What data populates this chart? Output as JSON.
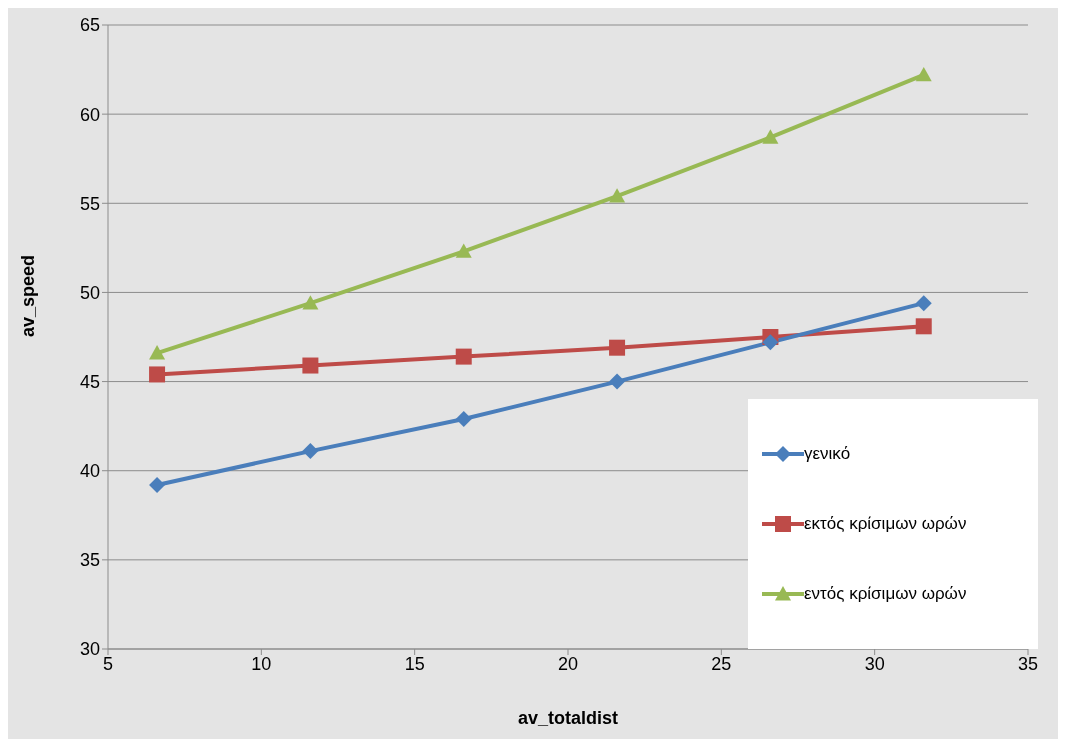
{
  "chart_data": {
    "type": "line",
    "xlabel": "av_totaldist",
    "ylabel": "av_speed",
    "x": [
      6.6,
      11.6,
      16.6,
      21.6,
      26.6,
      31.6
    ],
    "series": [
      {
        "name": "γενικό",
        "color": "#4a7ebb",
        "marker": "diamond",
        "values": [
          39.2,
          41.1,
          42.9,
          45.0,
          47.2,
          49.4
        ]
      },
      {
        "name": "εκτός κρίσιμων ωρών",
        "color": "#be4b48",
        "marker": "square",
        "values": [
          45.4,
          45.9,
          46.4,
          46.9,
          47.5,
          48.1
        ]
      },
      {
        "name": "εντός κρίσιμων ωρών",
        "color": "#98b954",
        "marker": "triangle",
        "values": [
          46.6,
          49.4,
          52.3,
          55.4,
          58.7,
          62.2
        ]
      }
    ],
    "xlim": [
      5,
      35
    ],
    "xticks": [
      5,
      10,
      15,
      20,
      25,
      30,
      35
    ],
    "ylim": [
      30,
      65
    ],
    "yticks": [
      30,
      35,
      40,
      45,
      50,
      55,
      60,
      65
    ],
    "grid": "y",
    "legend": "bottom right",
    "line_style": "solid"
  }
}
